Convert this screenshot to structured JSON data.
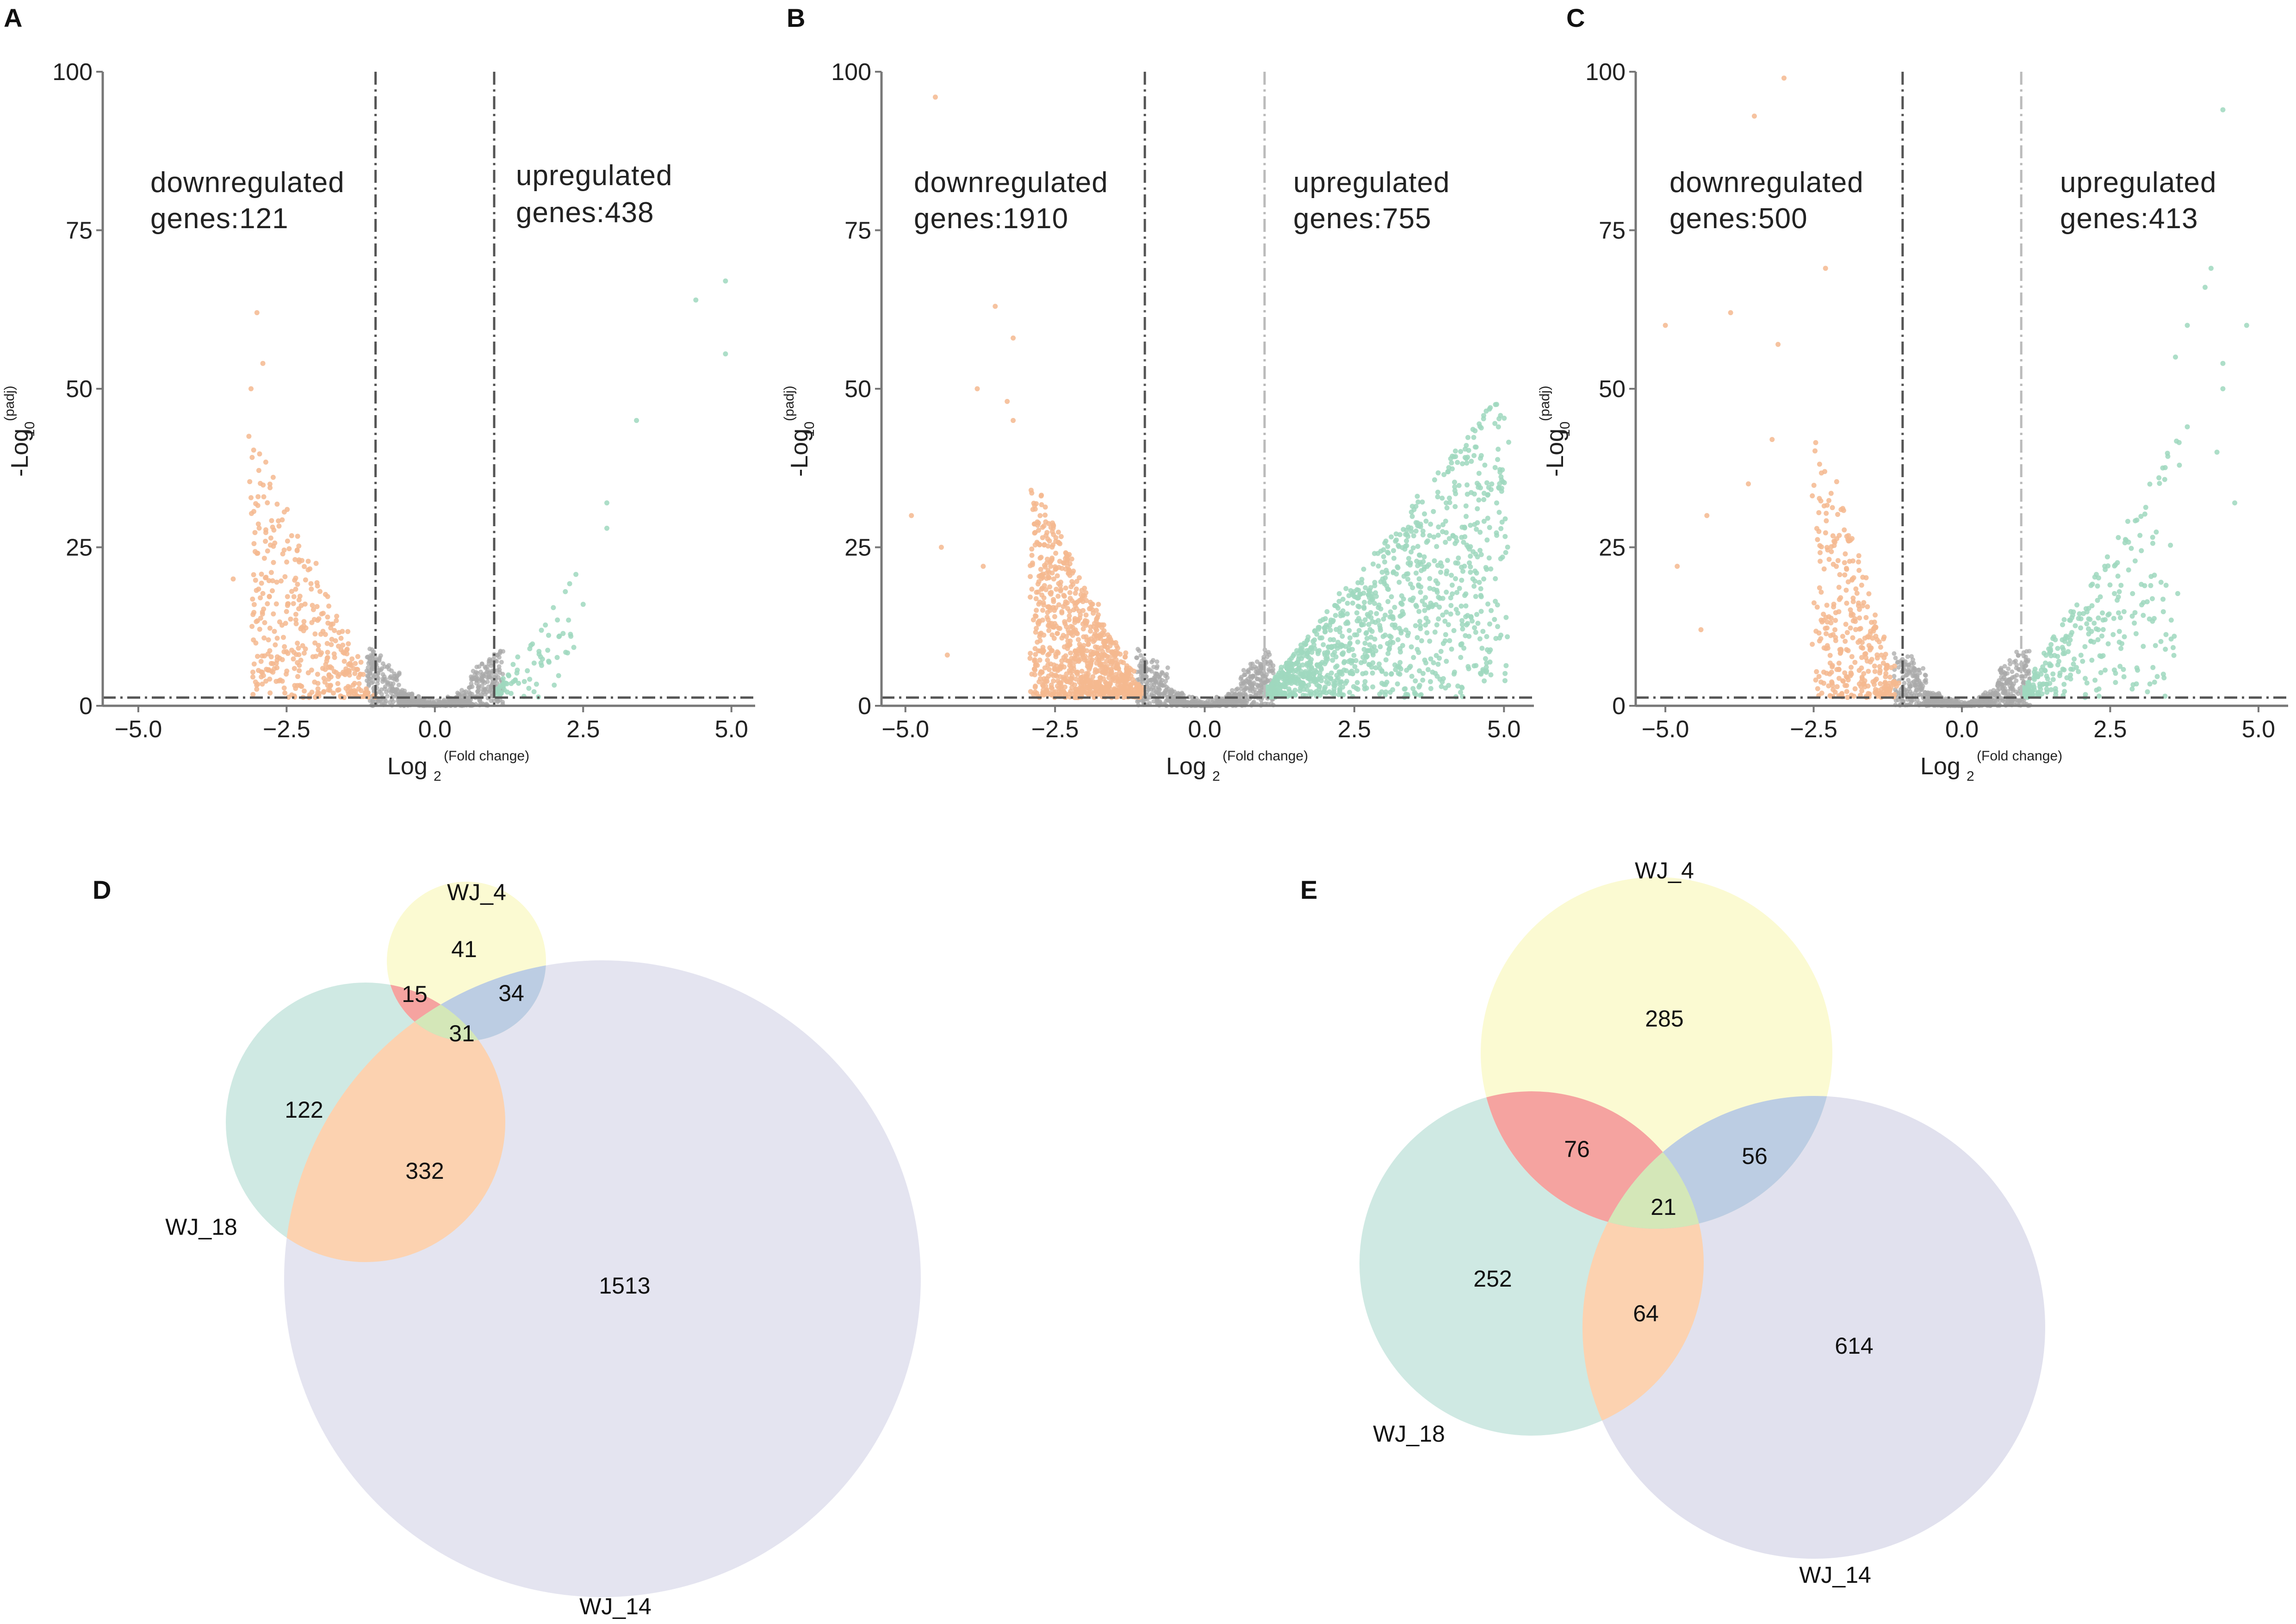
{
  "chart_data": [
    {
      "panel": "A",
      "type": "scatter",
      "subtype": "volcano",
      "xlabel": "Log",
      "xlabel_sub": "2",
      "xlabel_sup": "(Fold change)",
      "ylabel": "-Log",
      "ylabel_sub": "10",
      "ylabel_sup": "(padj)",
      "xlim": [
        -5.6,
        5.4
      ],
      "ylim": [
        0,
        100
      ],
      "xticks": [
        -5.0,
        -2.5,
        0.0,
        2.5,
        5.0
      ],
      "xtick_labels": [
        "−5.0",
        "−2.5",
        "0.0",
        "2.5",
        "5.0"
      ],
      "yticks": [
        0,
        25,
        50,
        75,
        100
      ],
      "ytick_labels": [
        "0",
        "25",
        "50",
        "75",
        "100"
      ],
      "fc_threshold": [
        -1,
        1
      ],
      "padj_threshold": 1.3,
      "down_label": "downregulated",
      "down_genes": "genes:121",
      "up_label": "upregulated",
      "up_genes": "genes:438",
      "down_count": 121,
      "up_count": 438,
      "colors": {
        "down": "#f5b98f",
        "up": "#9fd8be",
        "ns": "#a9a9a9"
      },
      "seed": 11,
      "n_down_pts": 380,
      "n_up_pts": 70,
      "down_x_range": [
        -3.0,
        -1.0
      ],
      "down_ymax": 40,
      "up_x_range": [
        1.0,
        2.3
      ],
      "up_ymax": 18,
      "outliers": [
        [
          -3.0,
          62
        ],
        [
          -2.9,
          54
        ],
        [
          -3.1,
          50
        ],
        [
          4.4,
          64
        ],
        [
          4.9,
          67
        ],
        [
          4.9,
          55.5
        ],
        [
          3.4,
          45
        ],
        [
          2.9,
          32
        ],
        [
          2.9,
          28
        ],
        [
          2.5,
          16
        ],
        [
          2.2,
          18
        ],
        [
          2.1,
          11
        ],
        [
          -3.4,
          20
        ],
        [
          1.6,
          9
        ]
      ]
    },
    {
      "panel": "B",
      "type": "scatter",
      "subtype": "volcano",
      "xlabel": "Log",
      "xlabel_sub": "2",
      "xlabel_sup": "(Fold change)",
      "ylabel": "-Log",
      "ylabel_sub": "10",
      "ylabel_sup": "(padj)",
      "xlim": [
        -5.4,
        5.5
      ],
      "ylim": [
        0,
        100
      ],
      "xticks": [
        -5.0,
        -2.5,
        0.0,
        2.5,
        5.0
      ],
      "xtick_labels": [
        "−5.0",
        "−2.5",
        "0.0",
        "2.5",
        "5.0"
      ],
      "yticks": [
        0,
        25,
        50,
        75,
        100
      ],
      "ytick_labels": [
        "0",
        "25",
        "50",
        "75",
        "100"
      ],
      "fc_threshold": [
        -1,
        1
      ],
      "padj_threshold": 1.3,
      "down_label": "downregulated",
      "down_genes": "genes:1910",
      "up_label": "upregulated",
      "up_genes": "genes:755",
      "down_count": 1910,
      "up_count": 755,
      "colors": {
        "down": "#f5b98f",
        "up": "#9fd8be",
        "ns": "#a9a9a9"
      },
      "seed": 23,
      "n_down_pts": 900,
      "n_up_pts": 1100,
      "down_x_range": [
        -2.8,
        -1.0
      ],
      "down_ymax": 32,
      "up_x_range": [
        1.0,
        5.0
      ],
      "up_ymax": 48,
      "outliers": [
        [
          -4.5,
          96
        ],
        [
          -3.5,
          63
        ],
        [
          -3.2,
          58
        ],
        [
          -3.8,
          50
        ],
        [
          -3.3,
          48
        ],
        [
          -4.9,
          30
        ],
        [
          -3.7,
          22
        ],
        [
          -4.3,
          8
        ],
        [
          -4.4,
          25
        ],
        [
          -2.9,
          34
        ],
        [
          -3.2,
          45
        ]
      ]
    },
    {
      "panel": "C",
      "type": "scatter",
      "subtype": "volcano",
      "xlabel": "Log",
      "xlabel_sub": "2",
      "xlabel_sup": "(Fold change)",
      "ylabel": "-Log",
      "ylabel_sub": "10",
      "ylabel_sup": "(padj)",
      "xlim": [
        -5.5,
        5.5
      ],
      "ylim": [
        0,
        100
      ],
      "xticks": [
        -5.0,
        -2.5,
        0.0,
        2.5,
        5.0
      ],
      "xtick_labels": [
        "−5.0",
        "−2.5",
        "0.0",
        "2.5",
        "5.0"
      ],
      "yticks": [
        0,
        25,
        50,
        75,
        100
      ],
      "ytick_labels": [
        "0",
        "25",
        "50",
        "75",
        "100"
      ],
      "fc_threshold": [
        -1,
        1
      ],
      "padj_threshold": 1.3,
      "down_label": "downregulated",
      "down_genes": "genes:500",
      "up_label": "upregulated",
      "up_genes": "genes:413",
      "down_count": 500,
      "up_count": 413,
      "colors": {
        "down": "#f5b98f",
        "up": "#9fd8be",
        "ns": "#a9a9a9"
      },
      "seed": 37,
      "n_down_pts": 330,
      "n_up_pts": 300,
      "down_x_range": [
        -2.4,
        -1.0
      ],
      "down_ymax": 42,
      "up_x_range": [
        1.0,
        3.6
      ],
      "up_ymax": 40,
      "outliers": [
        [
          -3.0,
          99
        ],
        [
          -3.5,
          93
        ],
        [
          -2.3,
          69
        ],
        [
          -3.1,
          57
        ],
        [
          -5.0,
          60
        ],
        [
          -3.9,
          62
        ],
        [
          -4.3,
          30
        ],
        [
          -4.4,
          12
        ],
        [
          -4.8,
          22
        ],
        [
          -3.2,
          42
        ],
        [
          4.4,
          94
        ],
        [
          4.2,
          69
        ],
        [
          4.1,
          66
        ],
        [
          4.8,
          60
        ],
        [
          4.4,
          54
        ],
        [
          4.4,
          50
        ],
        [
          4.3,
          40
        ],
        [
          3.8,
          60
        ],
        [
          3.6,
          55
        ],
        [
          3.8,
          44
        ],
        [
          4.6,
          32
        ],
        [
          -3.6,
          35
        ]
      ]
    },
    {
      "panel": "D",
      "type": "venn",
      "sets": [
        "WJ_4",
        "WJ_18",
        "WJ_14"
      ],
      "regions": {
        "WJ_4_only": 41,
        "WJ_4_WJ_18": 15,
        "WJ_4_WJ_14": 34,
        "WJ_4_WJ_18_WJ_14": 31,
        "WJ_18_only": 122,
        "WJ_18_WJ_14": 332,
        "WJ_14_only": 1513
      }
    },
    {
      "panel": "E",
      "type": "venn",
      "sets": [
        "WJ_4",
        "WJ_18",
        "WJ_14"
      ],
      "regions": {
        "WJ_4_only": 285,
        "WJ_4_WJ_18": 76,
        "WJ_4_WJ_14": 56,
        "WJ_4_WJ_18_WJ_14": 21,
        "WJ_18_only": 252,
        "WJ_18_WJ_14": 64,
        "WJ_14_only": 614
      }
    }
  ],
  "venn_colors": {
    "WJ_4": "#fbfad2",
    "WJ_18": "#cfe9e3",
    "WJ_14": "#e1e1ee",
    "WJ_4_WJ_18": "#f5a3a0",
    "WJ_4_WJ_14": "#bccde3",
    "WJ_18_WJ_14": "#fcd2b0",
    "all": "#d4e7b8"
  }
}
